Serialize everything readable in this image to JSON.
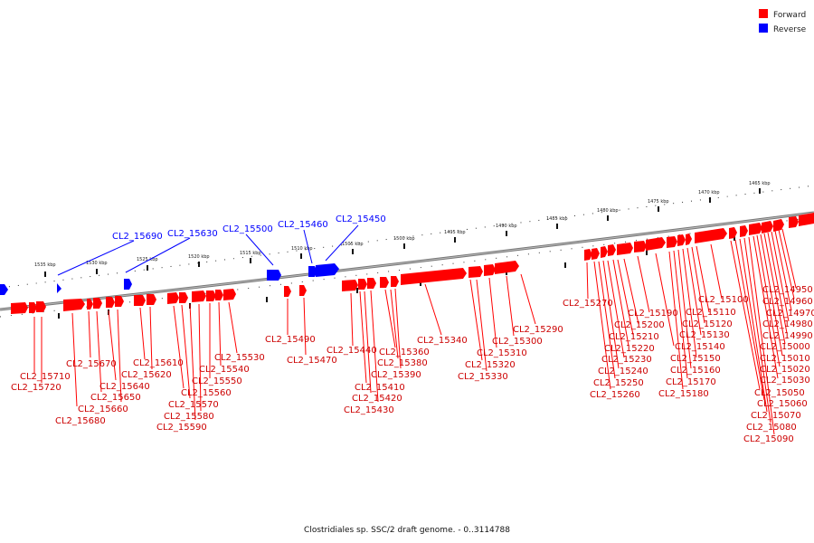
{
  "legend": [
    {
      "label": "Forward",
      "color": "#ff0000"
    },
    {
      "label": "Reverse",
      "color": "#0000ff"
    }
  ],
  "caption": "Clostridiales sp. SSC/2 draft genome. - 0..3114788",
  "ticks": [
    "1535 kbp",
    "1530 kbp",
    "1525 kbp",
    "1520 kbp",
    "1515 kbp",
    "1510 kbp",
    "1505 kbp",
    "1500 kbp",
    "1495 kbp",
    "1490 kbp",
    "1485 kbp",
    "1480 kbp",
    "1475 kbp",
    "1470 kbp",
    "1465 kbp"
  ],
  "reverse_labels": [
    "CL2_15690",
    "CL2_15630",
    "CL2_15500",
    "CL2_15460",
    "CL2_15450"
  ],
  "forward_labels": [
    "CL2_15710",
    "CL2_15720",
    "CL2_15670",
    "CL2_15640",
    "CL2_15650",
    "CL2_15660",
    "CL2_15680",
    "CL2_15610",
    "CL2_15620",
    "CL2_15530",
    "CL2_15540",
    "CL2_15550",
    "CL2_15560",
    "CL2_15570",
    "CL2_15580",
    "CL2_15590",
    "CL2_15490",
    "CL2_15470",
    "CL2_15440",
    "CL2_15410",
    "CL2_15420",
    "CL2_15430",
    "CL2_15360",
    "CL2_15380",
    "CL2_15390",
    "CL2_15340",
    "CL2_15320",
    "CL2_15330",
    "CL2_15310",
    "CL2_15300",
    "CL2_15290",
    "CL2_15270",
    "CL2_15190",
    "CL2_15200",
    "CL2_15210",
    "CL2_15220",
    "CL2_15230",
    "CL2_15240",
    "CL2_15250",
    "CL2_15260",
    "CL2_15100",
    "CL2_15110",
    "CL2_15120",
    "CL2_15130",
    "CL2_15140",
    "CL2_15150",
    "CL2_15160",
    "CL2_15170",
    "CL2_15180",
    "CL2_14950",
    "CL2_14960",
    "CL2_14970",
    "CL2_14980",
    "CL2_14990",
    "CL2_15000",
    "CL2_15010",
    "CL2_15020",
    "CL2_15030",
    "CL2_15050",
    "CL2_15060",
    "CL2_15070",
    "CL2_15080",
    "CL2_15090"
  ]
}
